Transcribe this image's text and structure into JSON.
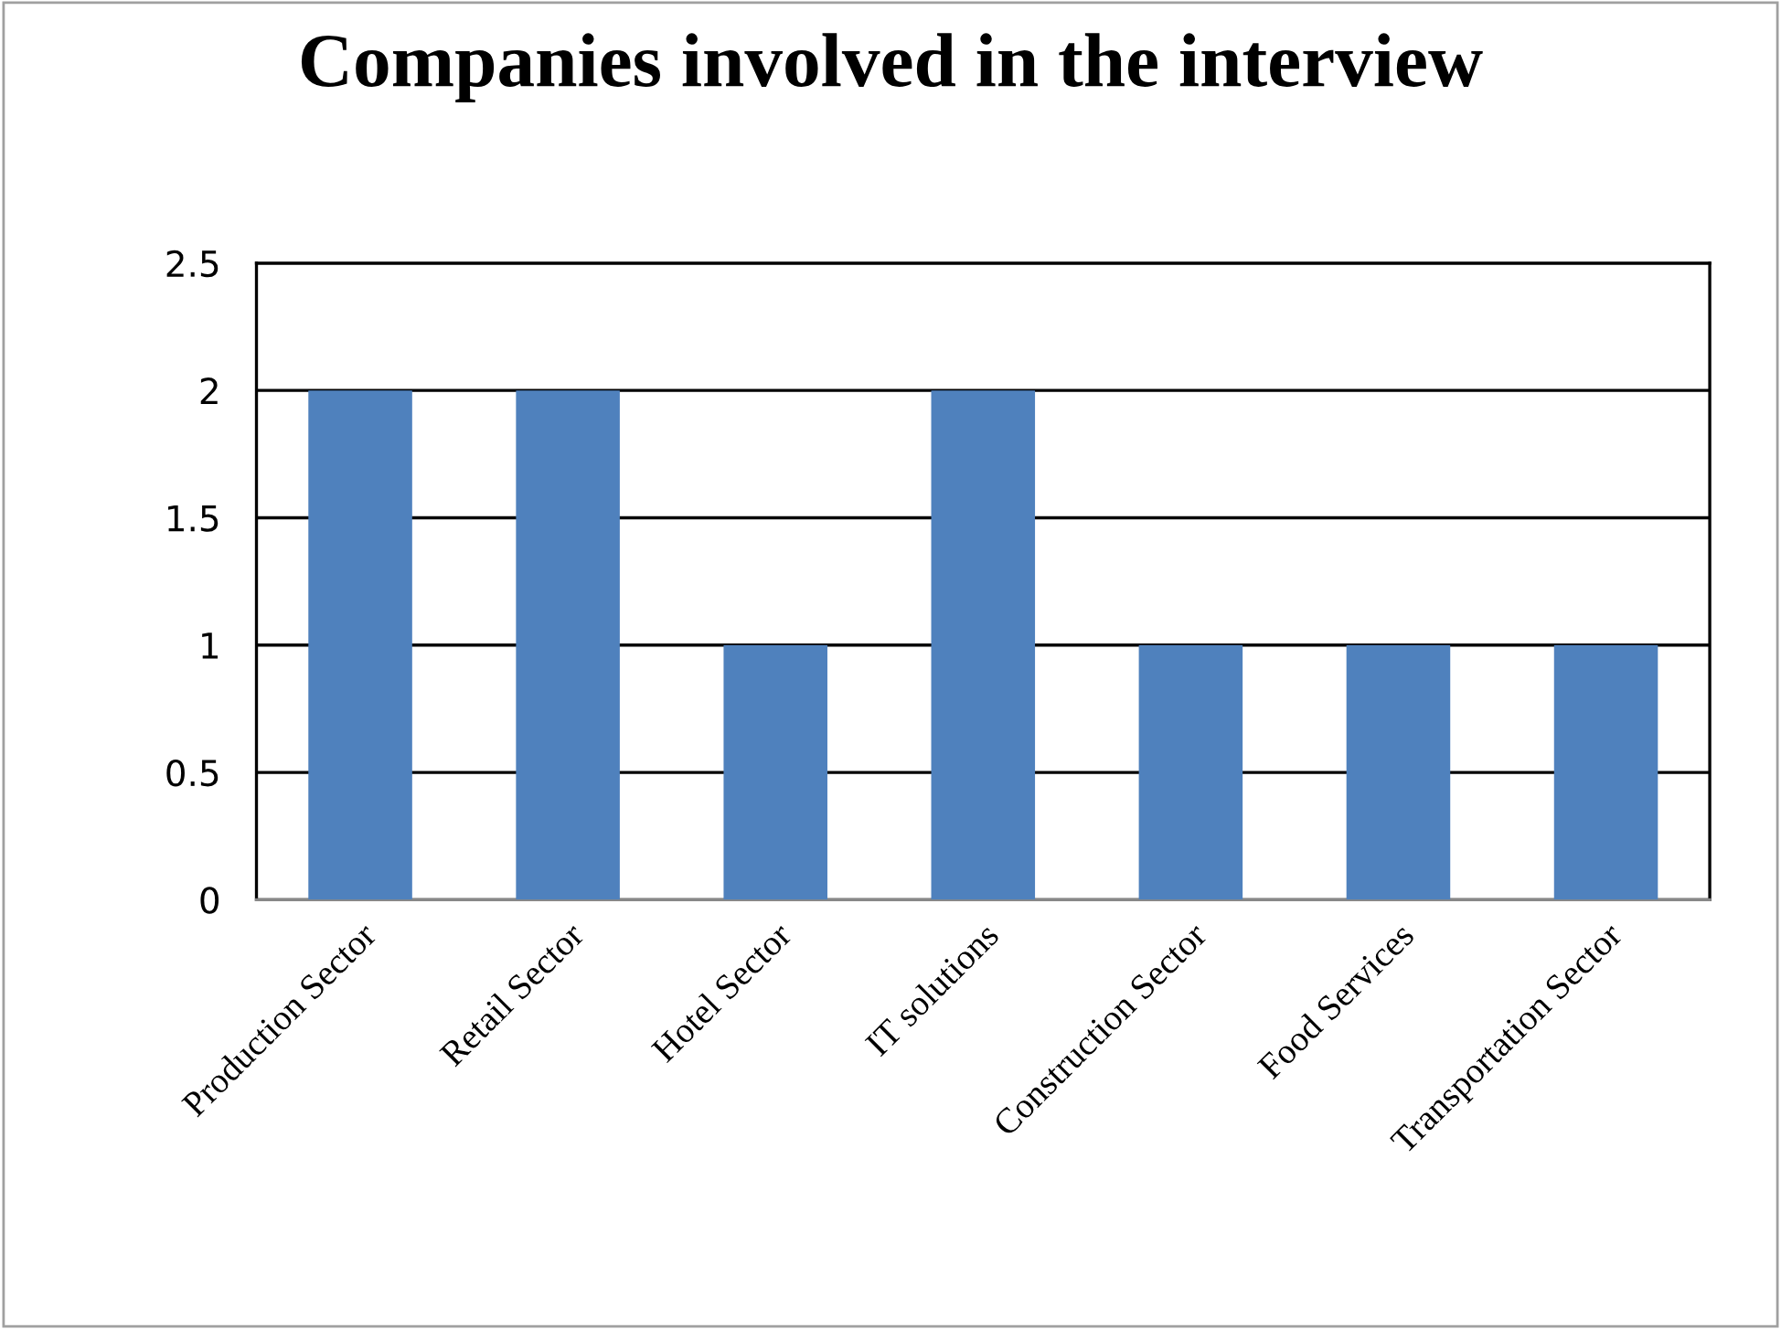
{
  "chart_data": {
    "type": "bar",
    "title": "Companies involved in the interview",
    "categories": [
      "Production Sector",
      "Retail Sector",
      "Hotel Sector",
      "IT solutions",
      "Construction Sector",
      "Food Services",
      "Transportation Sector"
    ],
    "values": [
      2,
      2,
      1,
      2,
      1,
      1,
      1
    ],
    "color": "#4f81bd",
    "ylim": [
      0,
      2.5
    ],
    "yticks": [
      0,
      0.5,
      1,
      1.5,
      2,
      2.5
    ],
    "grid": "y",
    "legend": false
  }
}
